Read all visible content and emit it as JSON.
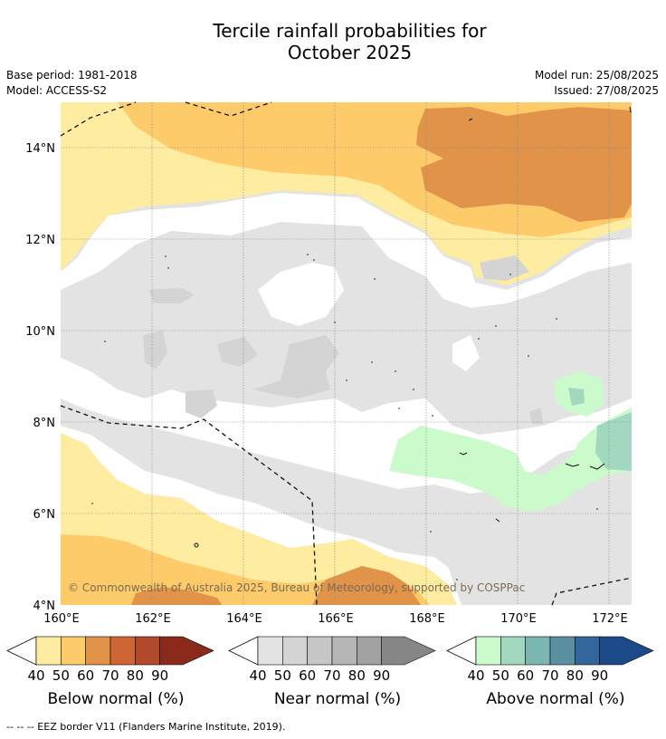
{
  "title": {
    "line1": "Tercile rainfall probabilities for",
    "line2": "October 2025"
  },
  "meta": {
    "base_period": "Base period: 1981-2018",
    "model": "Model: ACCESS-S2",
    "model_run": "Model run: 25/08/2025",
    "issued": "Issued: 27/08/2025"
  },
  "map": {
    "lat_labels": [
      "14°N",
      "12°N",
      "10°N",
      "8°N",
      "6°N",
      "4°N"
    ],
    "lon_labels": [
      "160°E",
      "162°E",
      "164°E",
      "166°E",
      "168°E",
      "170°E",
      "172°E"
    ],
    "copyright": "© Commonwealth of Australia 2025, Bureau of Meteorology, supported by COSPPac"
  },
  "colorbars": [
    {
      "label": "Below normal (%)",
      "ticks": [
        "40",
        "50",
        "60",
        "70",
        "80",
        "90"
      ],
      "colors": [
        "#feeca0",
        "#fdcb6a",
        "#e1934a",
        "#cd6634",
        "#b04a2a",
        "#8b2a1a"
      ]
    },
    {
      "label": "Near normal (%)",
      "ticks": [
        "40",
        "50",
        "60",
        "70",
        "80",
        "90"
      ],
      "colors": [
        "#e3e3e3",
        "#d4d4d4",
        "#c6c6c6",
        "#b5b5b5",
        "#a2a2a2",
        "#868686"
      ]
    },
    {
      "label": "Above normal (%)",
      "ticks": [
        "40",
        "50",
        "60",
        "70",
        "80",
        "90"
      ],
      "colors": [
        "#cbfacb",
        "#a2d8c0",
        "#7cb6b0",
        "#5a90a0",
        "#33669a",
        "#1a4a88"
      ]
    }
  ],
  "footnote": "--  --  -- EEZ border V11 (Flanders Marine Institute, 2019)."
}
